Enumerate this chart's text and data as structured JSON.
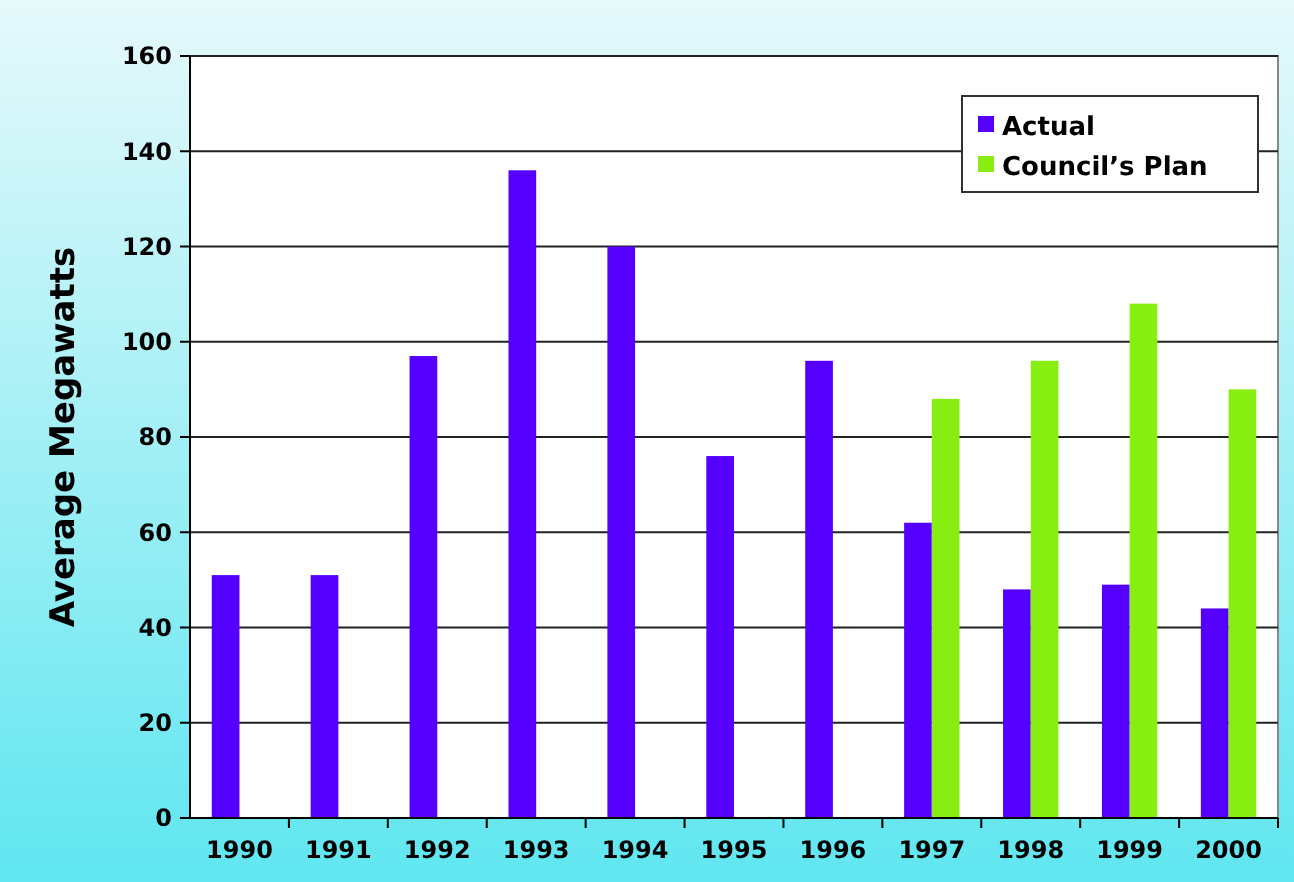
{
  "chart_data": {
    "type": "bar",
    "ylabel": "Average Megawatts",
    "categories": [
      "1990",
      "1991",
      "1992",
      "1993",
      "1994",
      "1995",
      "1996",
      "1997",
      "1998",
      "1999",
      "2000"
    ],
    "series": [
      {
        "name": "Actual",
        "color": "#5500ff",
        "values": [
          51,
          51,
          97,
          136,
          120,
          76,
          96,
          62,
          48,
          49,
          44
        ]
      },
      {
        "name": "Council’s Plan",
        "color": "#88ee11",
        "values": [
          null,
          null,
          null,
          null,
          null,
          null,
          null,
          88,
          96,
          108,
          90
        ]
      }
    ],
    "ylim": [
      0,
      160
    ],
    "yticks": [
      0,
      20,
      40,
      60,
      80,
      100,
      120,
      140,
      160
    ],
    "grid": "y",
    "legend": "top right"
  }
}
